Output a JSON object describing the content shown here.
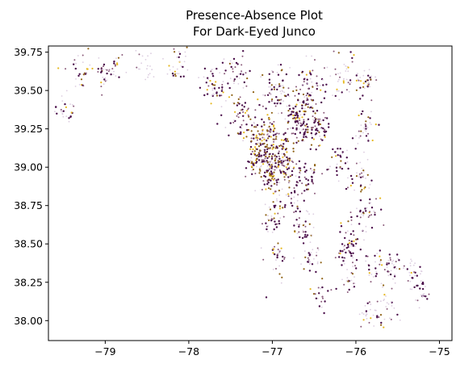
{
  "chart_data": {
    "type": "scatter",
    "title_lines": [
      "Presence-Absence Plot",
      "For Dark-Eyed Junco"
    ],
    "xlabel": "",
    "ylabel": "",
    "xlim": [
      -79.68,
      -74.85
    ],
    "ylim": [
      37.87,
      39.79
    ],
    "x_ticks": [
      -79,
      -78,
      -77,
      -76,
      -75
    ],
    "x_tick_labels": [
      "−79",
      "−78",
      "−77",
      "−76",
      "−75"
    ],
    "y_ticks": [
      38.0,
      38.25,
      38.5,
      38.75,
      39.0,
      39.25,
      39.5,
      39.75
    ],
    "y_tick_labels": [
      "38.00",
      "38.25",
      "38.50",
      "38.75",
      "39.00",
      "39.25",
      "39.50",
      "39.75"
    ],
    "grid": false,
    "legend": "none",
    "colors": {
      "absent": "#dccde0",
      "low": "#8a5a7a",
      "high": "#4a0f4a",
      "medium": "#8f6215",
      "present": "#e6b820"
    },
    "clusters": [
      {
        "lon": -79.47,
        "lat": 39.38,
        "spread": 0.05,
        "n": 26,
        "mix": [
          0.25,
          0.25,
          0.35,
          0.1,
          0.05
        ]
      },
      {
        "lon": -79.3,
        "lat": 39.62,
        "spread": 0.06,
        "n": 30,
        "mix": [
          0.4,
          0.2,
          0.2,
          0.1,
          0.1
        ]
      },
      {
        "lon": -79.0,
        "lat": 39.62,
        "spread": 0.05,
        "n": 28,
        "mix": [
          0.35,
          0.2,
          0.3,
          0.1,
          0.05
        ]
      },
      {
        "lon": -78.9,
        "lat": 39.67,
        "spread": 0.04,
        "n": 14,
        "mix": [
          0.2,
          0.2,
          0.3,
          0.1,
          0.2
        ]
      },
      {
        "lon": -78.55,
        "lat": 39.66,
        "spread": 0.06,
        "n": 22,
        "mix": [
          0.7,
          0.15,
          0.05,
          0.05,
          0.05
        ]
      },
      {
        "lon": -78.12,
        "lat": 39.68,
        "spread": 0.06,
        "n": 30,
        "mix": [
          0.45,
          0.2,
          0.2,
          0.1,
          0.05
        ]
      },
      {
        "lon": -77.72,
        "lat": 39.55,
        "spread": 0.06,
        "n": 40,
        "mix": [
          0.35,
          0.2,
          0.3,
          0.1,
          0.05
        ]
      },
      {
        "lon": -77.45,
        "lat": 39.62,
        "spread": 0.07,
        "n": 40,
        "mix": [
          0.35,
          0.2,
          0.25,
          0.15,
          0.05
        ]
      },
      {
        "lon": -77.4,
        "lat": 39.35,
        "spread": 0.08,
        "n": 50,
        "mix": [
          0.25,
          0.2,
          0.35,
          0.15,
          0.05
        ]
      },
      {
        "lon": -77.1,
        "lat": 39.17,
        "spread": 0.09,
        "n": 160,
        "mix": [
          0.12,
          0.18,
          0.28,
          0.28,
          0.14
        ]
      },
      {
        "lon": -76.88,
        "lat": 39.05,
        "spread": 0.08,
        "n": 120,
        "mix": [
          0.1,
          0.18,
          0.32,
          0.26,
          0.14
        ]
      },
      {
        "lon": -76.65,
        "lat": 39.3,
        "spread": 0.08,
        "n": 140,
        "mix": [
          0.1,
          0.15,
          0.45,
          0.2,
          0.1
        ]
      },
      {
        "lon": -76.95,
        "lat": 39.5,
        "spread": 0.08,
        "n": 70,
        "mix": [
          0.35,
          0.2,
          0.3,
          0.1,
          0.05
        ]
      },
      {
        "lon": -76.55,
        "lat": 39.52,
        "spread": 0.07,
        "n": 60,
        "mix": [
          0.35,
          0.2,
          0.3,
          0.1,
          0.05
        ]
      },
      {
        "lon": -76.15,
        "lat": 39.6,
        "spread": 0.07,
        "n": 45,
        "mix": [
          0.45,
          0.15,
          0.2,
          0.1,
          0.1
        ]
      },
      {
        "lon": -75.88,
        "lat": 39.55,
        "spread": 0.05,
        "n": 35,
        "mix": [
          0.35,
          0.15,
          0.3,
          0.1,
          0.1
        ]
      },
      {
        "lon": -76.42,
        "lat": 39.25,
        "spread": 0.05,
        "n": 40,
        "mix": [
          0.2,
          0.15,
          0.5,
          0.1,
          0.05
        ]
      },
      {
        "lon": -76.6,
        "lat": 38.95,
        "spread": 0.06,
        "n": 45,
        "mix": [
          0.15,
          0.2,
          0.45,
          0.15,
          0.05
        ]
      },
      {
        "lon": -77.05,
        "lat": 38.95,
        "spread": 0.06,
        "n": 50,
        "mix": [
          0.12,
          0.15,
          0.3,
          0.3,
          0.13
        ]
      },
      {
        "lon": -77.2,
        "lat": 39.02,
        "spread": 0.05,
        "n": 35,
        "mix": [
          0.15,
          0.15,
          0.35,
          0.25,
          0.1
        ]
      },
      {
        "lon": -76.85,
        "lat": 38.78,
        "spread": 0.07,
        "n": 40,
        "mix": [
          0.3,
          0.2,
          0.3,
          0.1,
          0.1
        ]
      },
      {
        "lon": -77.0,
        "lat": 38.65,
        "spread": 0.05,
        "n": 30,
        "mix": [
          0.3,
          0.2,
          0.3,
          0.1,
          0.1
        ]
      },
      {
        "lon": -76.62,
        "lat": 38.62,
        "spread": 0.06,
        "n": 35,
        "mix": [
          0.3,
          0.2,
          0.35,
          0.1,
          0.05
        ]
      },
      {
        "lon": -76.95,
        "lat": 38.4,
        "spread": 0.06,
        "n": 30,
        "mix": [
          0.4,
          0.2,
          0.25,
          0.1,
          0.05
        ]
      },
      {
        "lon": -76.55,
        "lat": 38.4,
        "spread": 0.06,
        "n": 30,
        "mix": [
          0.35,
          0.2,
          0.3,
          0.1,
          0.05
        ]
      },
      {
        "lon": -76.45,
        "lat": 38.18,
        "spread": 0.05,
        "n": 20,
        "mix": [
          0.3,
          0.25,
          0.3,
          0.1,
          0.05
        ]
      },
      {
        "lon": -76.2,
        "lat": 39.05,
        "spread": 0.05,
        "n": 30,
        "mix": [
          0.3,
          0.15,
          0.45,
          0.05,
          0.05
        ]
      },
      {
        "lon": -75.95,
        "lat": 38.95,
        "spread": 0.06,
        "n": 35,
        "mix": [
          0.3,
          0.15,
          0.4,
          0.1,
          0.05
        ]
      },
      {
        "lon": -75.9,
        "lat": 39.25,
        "spread": 0.06,
        "n": 35,
        "mix": [
          0.35,
          0.2,
          0.25,
          0.1,
          0.1
        ]
      },
      {
        "lon": -75.85,
        "lat": 38.72,
        "spread": 0.06,
        "n": 35,
        "mix": [
          0.35,
          0.2,
          0.35,
          0.05,
          0.05
        ]
      },
      {
        "lon": -76.05,
        "lat": 38.55,
        "spread": 0.06,
        "n": 35,
        "mix": [
          0.3,
          0.2,
          0.35,
          0.1,
          0.05
        ]
      },
      {
        "lon": -76.1,
        "lat": 38.42,
        "spread": 0.05,
        "n": 30,
        "mix": [
          0.25,
          0.15,
          0.5,
          0.05,
          0.05
        ]
      },
      {
        "lon": -75.75,
        "lat": 38.35,
        "spread": 0.06,
        "n": 30,
        "mix": [
          0.4,
          0.2,
          0.3,
          0.05,
          0.05
        ]
      },
      {
        "lon": -75.55,
        "lat": 38.35,
        "spread": 0.06,
        "n": 30,
        "mix": [
          0.5,
          0.2,
          0.2,
          0.05,
          0.05
        ]
      },
      {
        "lon": -75.3,
        "lat": 38.32,
        "spread": 0.05,
        "n": 25,
        "mix": [
          0.45,
          0.2,
          0.25,
          0.05,
          0.05
        ]
      },
      {
        "lon": -75.2,
        "lat": 38.18,
        "spread": 0.04,
        "n": 22,
        "mix": [
          0.25,
          0.2,
          0.45,
          0.05,
          0.05
        ]
      },
      {
        "lon": -75.65,
        "lat": 38.1,
        "spread": 0.06,
        "n": 30,
        "mix": [
          0.5,
          0.2,
          0.2,
          0.05,
          0.05
        ]
      },
      {
        "lon": -75.85,
        "lat": 38.02,
        "spread": 0.05,
        "n": 20,
        "mix": [
          0.6,
          0.15,
          0.15,
          0.05,
          0.05
        ]
      },
      {
        "lon": -76.1,
        "lat": 38.25,
        "spread": 0.05,
        "n": 20,
        "mix": [
          0.5,
          0.2,
          0.2,
          0.05,
          0.05
        ]
      }
    ]
  }
}
